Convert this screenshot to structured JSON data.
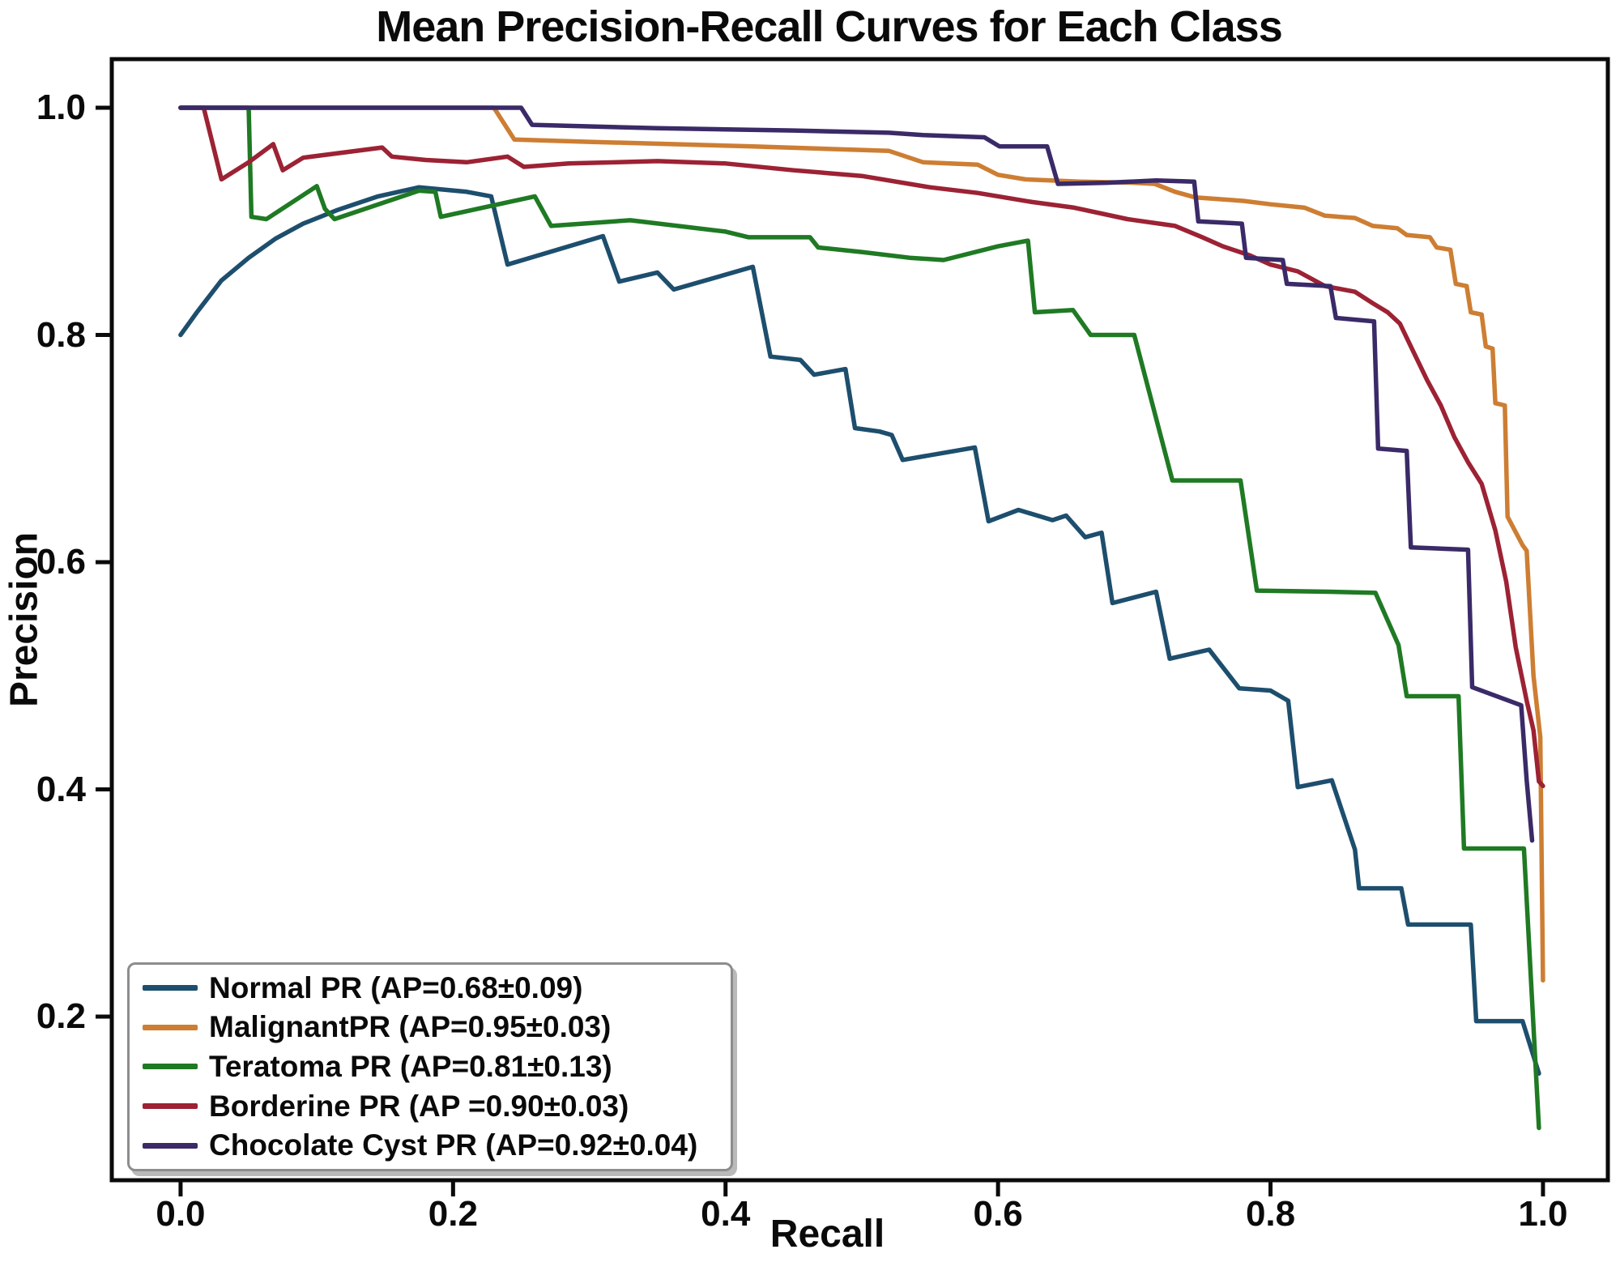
{
  "title": "Mean Precision-Recall Curves for Each Class",
  "chart_data": {
    "type": "line",
    "title": "Mean Precision-Recall Curves for Each Class",
    "xlabel": "Recall",
    "ylabel": "Precision",
    "xlim": [
      -0.0505,
      1.0476
    ],
    "ylim": [
      0.056,
      1.0428
    ],
    "x_ticks": [
      0.0,
      0.2,
      0.4,
      0.6,
      0.8,
      1.0
    ],
    "y_ticks": [
      0.2,
      0.4,
      0.6,
      0.8,
      1.0
    ],
    "grid": false,
    "legend_position": "lower-left",
    "axis_color": "#0a0a0a",
    "series": [
      {
        "name": "Normal PR (AP=0.68±0.09)",
        "color": "#1d4e6d",
        "points": [
          [
            0,
            0.8
          ],
          [
            0.012,
            0.82
          ],
          [
            0.03,
            0.848
          ],
          [
            0.05,
            0.868
          ],
          [
            0.07,
            0.885
          ],
          [
            0.09,
            0.898
          ],
          [
            0.115,
            0.91
          ],
          [
            0.145,
            0.922
          ],
          [
            0.175,
            0.93
          ],
          [
            0.21,
            0.926
          ],
          [
            0.228,
            0.922
          ],
          [
            0.24,
            0.862
          ],
          [
            0.31,
            0.887
          ],
          [
            0.322,
            0.847
          ],
          [
            0.35,
            0.855
          ],
          [
            0.362,
            0.84
          ],
          [
            0.42,
            0.86
          ],
          [
            0.433,
            0.781
          ],
          [
            0.455,
            0.778
          ],
          [
            0.465,
            0.765
          ],
          [
            0.488,
            0.77
          ],
          [
            0.495,
            0.718
          ],
          [
            0.513,
            0.715
          ],
          [
            0.522,
            0.712
          ],
          [
            0.53,
            0.69
          ],
          [
            0.583,
            0.701
          ],
          [
            0.593,
            0.636
          ],
          [
            0.615,
            0.646
          ],
          [
            0.64,
            0.637
          ],
          [
            0.65,
            0.641
          ],
          [
            0.664,
            0.622
          ],
          [
            0.676,
            0.626
          ],
          [
            0.684,
            0.564
          ],
          [
            0.716,
            0.574
          ],
          [
            0.726,
            0.515
          ],
          [
            0.755,
            0.523
          ],
          [
            0.777,
            0.489
          ],
          [
            0.8,
            0.487
          ],
          [
            0.813,
            0.478
          ],
          [
            0.82,
            0.402
          ],
          [
            0.845,
            0.408
          ],
          [
            0.862,
            0.347
          ],
          [
            0.865,
            0.313
          ],
          [
            0.896,
            0.313
          ],
          [
            0.901,
            0.281
          ],
          [
            0.947,
            0.281
          ],
          [
            0.951,
            0.196
          ],
          [
            0.985,
            0.196
          ],
          [
            0.997,
            0.15
          ]
        ]
      },
      {
        "name": "MalignantPR (AP=0.95±0.03)",
        "color": "#cd7e33",
        "points": [
          [
            0,
            1.0
          ],
          [
            0.23,
            1.0
          ],
          [
            0.245,
            0.972
          ],
          [
            0.3,
            0.97
          ],
          [
            0.36,
            0.968
          ],
          [
            0.42,
            0.966
          ],
          [
            0.47,
            0.964
          ],
          [
            0.52,
            0.962
          ],
          [
            0.545,
            0.952
          ],
          [
            0.585,
            0.95
          ],
          [
            0.6,
            0.941
          ],
          [
            0.62,
            0.937
          ],
          [
            0.66,
            0.935
          ],
          [
            0.7,
            0.934
          ],
          [
            0.715,
            0.933
          ],
          [
            0.73,
            0.926
          ],
          [
            0.745,
            0.921
          ],
          [
            0.78,
            0.918
          ],
          [
            0.8,
            0.915
          ],
          [
            0.825,
            0.912
          ],
          [
            0.84,
            0.905
          ],
          [
            0.862,
            0.903
          ],
          [
            0.875,
            0.896
          ],
          [
            0.893,
            0.894
          ],
          [
            0.9,
            0.888
          ],
          [
            0.917,
            0.886
          ],
          [
            0.922,
            0.877
          ],
          [
            0.932,
            0.875
          ],
          [
            0.936,
            0.845
          ],
          [
            0.944,
            0.843
          ],
          [
            0.947,
            0.82
          ],
          [
            0.955,
            0.818
          ],
          [
            0.958,
            0.79
          ],
          [
            0.963,
            0.788
          ],
          [
            0.965,
            0.74
          ],
          [
            0.972,
            0.738
          ],
          [
            0.974,
            0.64
          ],
          [
            0.985,
            0.615
          ],
          [
            0.988,
            0.61
          ],
          [
            0.993,
            0.5
          ],
          [
            0.998,
            0.446
          ],
          [
            1.0,
            0.232
          ]
        ]
      },
      {
        "name": "Teratoma PR (AP=0.81±0.13)",
        "color": "#1f7a23",
        "points": [
          [
            0,
            1.0
          ],
          [
            0.05,
            1.0
          ],
          [
            0.052,
            0.904
          ],
          [
            0.063,
            0.902
          ],
          [
            0.1,
            0.931
          ],
          [
            0.106,
            0.911
          ],
          [
            0.113,
            0.902
          ],
          [
            0.175,
            0.927
          ],
          [
            0.187,
            0.926
          ],
          [
            0.191,
            0.904
          ],
          [
            0.26,
            0.922
          ],
          [
            0.272,
            0.896
          ],
          [
            0.33,
            0.901
          ],
          [
            0.4,
            0.891
          ],
          [
            0.417,
            0.886
          ],
          [
            0.462,
            0.886
          ],
          [
            0.468,
            0.877
          ],
          [
            0.5,
            0.873
          ],
          [
            0.535,
            0.868
          ],
          [
            0.56,
            0.866
          ],
          [
            0.6,
            0.878
          ],
          [
            0.622,
            0.883
          ],
          [
            0.627,
            0.82
          ],
          [
            0.655,
            0.822
          ],
          [
            0.668,
            0.8
          ],
          [
            0.7,
            0.8
          ],
          [
            0.728,
            0.672
          ],
          [
            0.778,
            0.672
          ],
          [
            0.79,
            0.575
          ],
          [
            0.843,
            0.574
          ],
          [
            0.877,
            0.573
          ],
          [
            0.894,
            0.527
          ],
          [
            0.9,
            0.482
          ],
          [
            0.938,
            0.482
          ],
          [
            0.942,
            0.348
          ],
          [
            0.986,
            0.348
          ],
          [
            0.997,
            0.102
          ]
        ]
      },
      {
        "name": "Borderine PR (AP =0.90±0.03)",
        "color": "#9c2234",
        "points": [
          [
            0,
            1.0
          ],
          [
            0.017,
            1.0
          ],
          [
            0.03,
            0.937
          ],
          [
            0.05,
            0.952
          ],
          [
            0.068,
            0.968
          ],
          [
            0.075,
            0.945
          ],
          [
            0.09,
            0.956
          ],
          [
            0.148,
            0.965
          ],
          [
            0.155,
            0.957
          ],
          [
            0.18,
            0.954
          ],
          [
            0.21,
            0.952
          ],
          [
            0.24,
            0.957
          ],
          [
            0.252,
            0.948
          ],
          [
            0.285,
            0.951
          ],
          [
            0.35,
            0.953
          ],
          [
            0.4,
            0.951
          ],
          [
            0.45,
            0.945
          ],
          [
            0.5,
            0.94
          ],
          [
            0.55,
            0.93
          ],
          [
            0.585,
            0.925
          ],
          [
            0.625,
            0.917
          ],
          [
            0.656,
            0.912
          ],
          [
            0.695,
            0.902
          ],
          [
            0.73,
            0.896
          ],
          [
            0.75,
            0.886
          ],
          [
            0.765,
            0.878
          ],
          [
            0.785,
            0.87
          ],
          [
            0.8,
            0.862
          ],
          [
            0.82,
            0.856
          ],
          [
            0.84,
            0.843
          ],
          [
            0.862,
            0.838
          ],
          [
            0.875,
            0.828
          ],
          [
            0.886,
            0.82
          ],
          [
            0.895,
            0.81
          ],
          [
            0.905,
            0.785
          ],
          [
            0.915,
            0.76
          ],
          [
            0.925,
            0.738
          ],
          [
            0.935,
            0.71
          ],
          [
            0.945,
            0.688
          ],
          [
            0.955,
            0.669
          ],
          [
            0.965,
            0.628
          ],
          [
            0.973,
            0.583
          ],
          [
            0.98,
            0.525
          ],
          [
            0.988,
            0.478
          ],
          [
            0.993,
            0.452
          ],
          [
            0.997,
            0.407
          ],
          [
            1.0,
            0.403
          ]
        ]
      },
      {
        "name": "Chocolate Cyst PR (AP=0.92±0.04)",
        "color": "#3a2a67",
        "points": [
          [
            0,
            1.0
          ],
          [
            0.25,
            1.0
          ],
          [
            0.258,
            0.985
          ],
          [
            0.35,
            0.982
          ],
          [
            0.45,
            0.98
          ],
          [
            0.52,
            0.978
          ],
          [
            0.545,
            0.976
          ],
          [
            0.59,
            0.974
          ],
          [
            0.601,
            0.966
          ],
          [
            0.636,
            0.966
          ],
          [
            0.644,
            0.933
          ],
          [
            0.68,
            0.934
          ],
          [
            0.716,
            0.936
          ],
          [
            0.744,
            0.935
          ],
          [
            0.747,
            0.9
          ],
          [
            0.779,
            0.898
          ],
          [
            0.782,
            0.868
          ],
          [
            0.809,
            0.866
          ],
          [
            0.812,
            0.845
          ],
          [
            0.844,
            0.843
          ],
          [
            0.848,
            0.815
          ],
          [
            0.876,
            0.812
          ],
          [
            0.879,
            0.7
          ],
          [
            0.9,
            0.698
          ],
          [
            0.903,
            0.613
          ],
          [
            0.945,
            0.611
          ],
          [
            0.948,
            0.49
          ],
          [
            0.984,
            0.474
          ],
          [
            0.988,
            0.408
          ],
          [
            0.992,
            0.355
          ]
        ]
      }
    ]
  }
}
